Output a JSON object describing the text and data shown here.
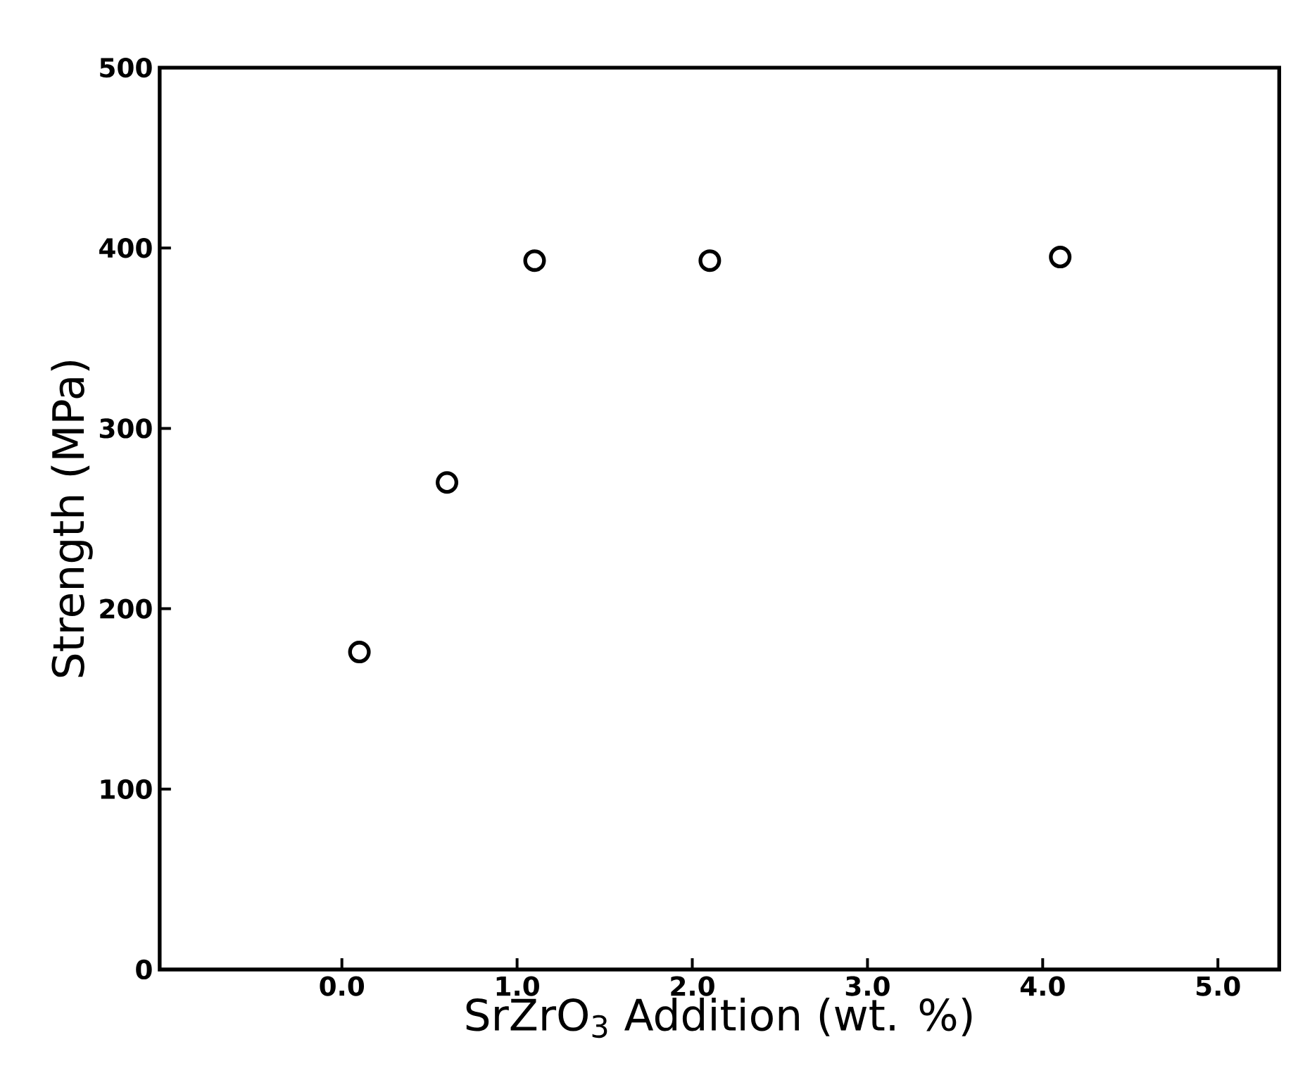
{
  "chart_data": {
    "type": "scatter",
    "xlabel": "SrZrO$_{3}$ Addition (wt. %)",
    "ylabel": "Strength (MPa)",
    "x": [
      0.1,
      0.6,
      1.1,
      2.1,
      4.1
    ],
    "values": [
      176,
      270,
      393,
      393,
      395
    ],
    "color": "#000000",
    "marker": "circle",
    "grid": false,
    "xlim": [
      -1.04,
      5.35
    ],
    "ylim": [
      0,
      500
    ],
    "xticks": [
      {
        "value": 0,
        "label": "0.0"
      },
      {
        "value": 1,
        "label": "1.0"
      },
      {
        "value": 2,
        "label": "2.0"
      },
      {
        "value": 3,
        "label": "3.0"
      },
      {
        "value": 4,
        "label": "4.0"
      },
      {
        "value": 5,
        "label": "5.0"
      }
    ],
    "yticks": [
      0,
      100,
      200,
      300,
      400,
      500
    ]
  }
}
